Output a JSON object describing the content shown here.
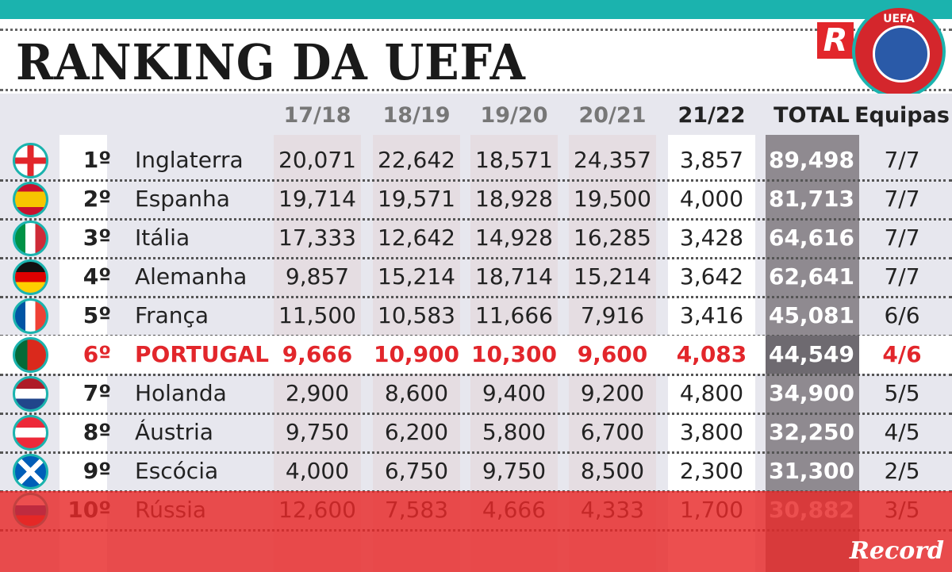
{
  "title": "RANKING DA UEFA",
  "logos": {
    "record_r": "R",
    "uefa": "UEFA",
    "record": "Record"
  },
  "colors": {
    "accent": "#1bb3ae",
    "highlight": "#e2262b",
    "total_bg": "#8f8a90"
  },
  "chart_data": {
    "type": "table",
    "columns": [
      "17/18",
      "18/19",
      "19/20",
      "20/21",
      "21/22",
      "TOTAL",
      "Equipas"
    ],
    "rows": [
      {
        "rank": "1º",
        "country": "Inglaterra",
        "flag": "england",
        "values": [
          "20,071",
          "22,642",
          "18,571",
          "24,357",
          "3,857"
        ],
        "total": "89,498",
        "equipas": "7/7"
      },
      {
        "rank": "2º",
        "country": "Espanha",
        "flag": "spain",
        "values": [
          "19,714",
          "19,571",
          "18,928",
          "19,500",
          "4,000"
        ],
        "total": "81,713",
        "equipas": "7/7"
      },
      {
        "rank": "3º",
        "country": "Itália",
        "flag": "italy",
        "values": [
          "17,333",
          "12,642",
          "14,928",
          "16,285",
          "3,428"
        ],
        "total": "64,616",
        "equipas": "7/7"
      },
      {
        "rank": "4º",
        "country": "Alemanha",
        "flag": "germany",
        "values": [
          "9,857",
          "15,214",
          "18,714",
          "15,214",
          "3,642"
        ],
        "total": "62,641",
        "equipas": "7/7"
      },
      {
        "rank": "5º",
        "country": "França",
        "flag": "france",
        "values": [
          "11,500",
          "10,583",
          "11,666",
          "7,916",
          "3,416"
        ],
        "total": "45,081",
        "equipas": "6/6"
      },
      {
        "rank": "6º",
        "country": "PORTUGAL",
        "flag": "portugal",
        "values": [
          "9,666",
          "10,900",
          "10,300",
          "9,600",
          "4,083"
        ],
        "total": "44,549",
        "equipas": "4/6",
        "highlight": true
      },
      {
        "rank": "7º",
        "country": "Holanda",
        "flag": "netherlands",
        "values": [
          "2,900",
          "8,600",
          "9,400",
          "9,200",
          "4,800"
        ],
        "total": "34,900",
        "equipas": "5/5"
      },
      {
        "rank": "8º",
        "country": "Áustria",
        "flag": "austria",
        "values": [
          "9,750",
          "6,200",
          "5,800",
          "6,700",
          "3,800"
        ],
        "total": "32,250",
        "equipas": "4/5"
      },
      {
        "rank": "9º",
        "country": "Escócia",
        "flag": "scotland",
        "values": [
          "4,000",
          "6,750",
          "9,750",
          "8,500",
          "2,300"
        ],
        "total": "31,300",
        "equipas": "2/5"
      },
      {
        "rank": "10º",
        "country": "Rússia",
        "flag": "russia",
        "values": [
          "12,600",
          "7,583",
          "4,666",
          "4,333",
          "1,700"
        ],
        "total": "30,882",
        "equipas": "3/5"
      }
    ]
  }
}
